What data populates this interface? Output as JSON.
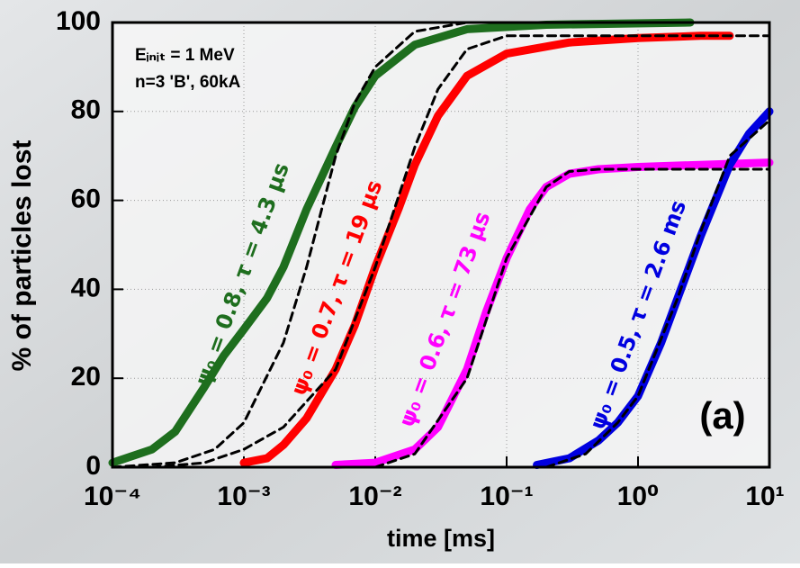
{
  "chart_data": {
    "type": "line",
    "xlabel": "time [ms]",
    "ylabel": "% of particles lost",
    "xscale": "log",
    "grid": true,
    "xlim": [
      0.0001,
      10
    ],
    "ylim": [
      0,
      100
    ],
    "xticks": [
      {
        "value": 0.0001,
        "label": "10⁻⁴"
      },
      {
        "value": 0.001,
        "label": "10⁻³"
      },
      {
        "value": 0.01,
        "label": "10⁻²"
      },
      {
        "value": 0.1,
        "label": "10⁻¹"
      },
      {
        "value": 1,
        "label": "10⁰"
      },
      {
        "value": 10,
        "label": "10¹"
      }
    ],
    "yticks": [
      0,
      20,
      40,
      60,
      80,
      100
    ],
    "annotations": [
      "Eᵢₙᵢₜ = 1 MeV",
      "n=3 'B', 60kA",
      "(a)"
    ],
    "curve_labels": [
      {
        "text": "ψ₀ = 0.8, τ = 4.3 μs",
        "color": "#1e6e1e"
      },
      {
        "text": "ψ₀ = 0.7, τ = 19 μs",
        "color": "#ff0000"
      },
      {
        "text": "ψ₀ = 0.6, τ = 73 μs",
        "color": "#ff00ff"
      },
      {
        "text": "ψ₀ = 0.5, τ = 2.6 ms",
        "color": "#0000e0"
      }
    ],
    "series": [
      {
        "color": "#1e6e1e",
        "style": "solid",
        "x": [
          0.0001,
          0.0002,
          0.0003,
          0.0005,
          0.0007,
          0.001,
          0.0015,
          0.002,
          0.003,
          0.005,
          0.007,
          0.01,
          0.02,
          0.05,
          0.2,
          2.5
        ],
        "values": [
          1,
          4,
          8,
          18,
          25,
          31,
          38,
          45,
          58,
          72,
          81,
          88,
          95,
          98.5,
          99.5,
          100
        ]
      },
      {
        "color": "#000000",
        "style": "dashed",
        "x": [
          0.0001,
          0.0003,
          0.0006,
          0.001,
          0.002,
          0.003,
          0.005,
          0.007,
          0.01,
          0.02,
          0.05
        ],
        "values": [
          0,
          1,
          4,
          10,
          28,
          45,
          70,
          82,
          90,
          98,
          100
        ]
      },
      {
        "color": "#ff0000",
        "style": "solid",
        "x": [
          0.001,
          0.0015,
          0.002,
          0.003,
          0.005,
          0.007,
          0.01,
          0.015,
          0.02,
          0.03,
          0.05,
          0.1,
          0.3,
          1,
          3,
          5
        ],
        "values": [
          1,
          2,
          5,
          11,
          22,
          32,
          45,
          58,
          68,
          79,
          88,
          93,
          95.5,
          96.5,
          97,
          97
        ]
      },
      {
        "color": "#000000",
        "style": "dashed",
        "x": [
          0.0002,
          0.0005,
          0.001,
          0.002,
          0.005,
          0.01,
          0.02,
          0.03,
          0.05,
          0.1,
          1,
          10
        ],
        "values": [
          0,
          1,
          4,
          9,
          22,
          45,
          72,
          85,
          94,
          97,
          97,
          97
        ]
      },
      {
        "color": "#ff00ff",
        "style": "solid",
        "x": [
          0.005,
          0.01,
          0.02,
          0.03,
          0.05,
          0.07,
          0.1,
          0.15,
          0.2,
          0.3,
          0.5,
          1,
          10
        ],
        "values": [
          0.5,
          1,
          4,
          9,
          22,
          35,
          47,
          58,
          63,
          66,
          67,
          67.5,
          68.5
        ]
      },
      {
        "color": "#000000",
        "style": "dashed",
        "x": [
          0.01,
          0.02,
          0.05,
          0.1,
          0.2,
          0.3,
          0.5,
          10
        ],
        "values": [
          0,
          3,
          20,
          47,
          63,
          66.5,
          67,
          67
        ]
      },
      {
        "color": "#0000e0",
        "style": "solid",
        "x": [
          0.17,
          0.3,
          0.5,
          0.7,
          1,
          1.5,
          2,
          3,
          5,
          7,
          10
        ],
        "values": [
          0.5,
          2,
          6,
          10,
          16,
          28,
          38,
          52,
          68,
          75,
          80
        ]
      },
      {
        "color": "#000000",
        "style": "dashed",
        "x": [
          0.2,
          0.4,
          0.7,
          1,
          2,
          3,
          5,
          10
        ],
        "values": [
          0,
          3,
          10,
          16,
          38,
          53,
          70,
          78
        ]
      }
    ]
  }
}
